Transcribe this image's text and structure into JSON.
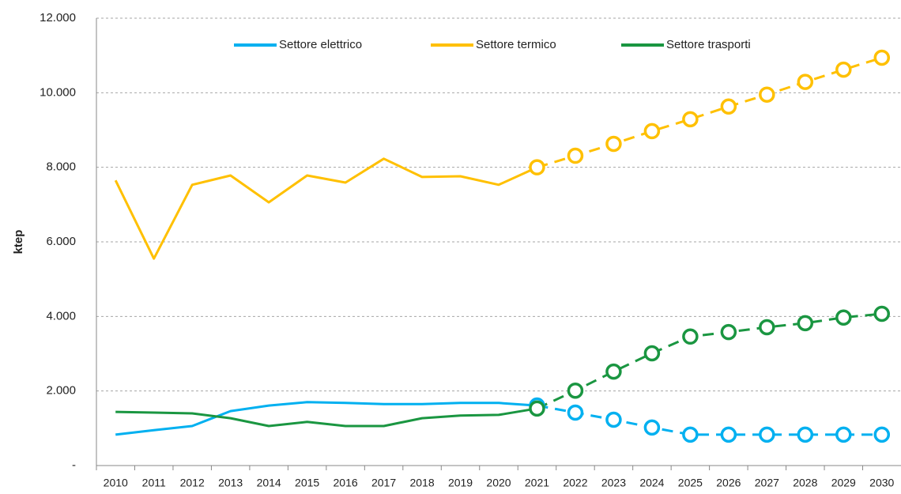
{
  "chart_data": {
    "type": "line",
    "y_label": "ktep",
    "categories": [
      "2010",
      "2011",
      "2012",
      "2013",
      "2014",
      "2015",
      "2016",
      "2017",
      "2018",
      "2019",
      "2020",
      "2021",
      "2022",
      "2023",
      "2024",
      "2025",
      "2026",
      "2027",
      "2028",
      "2029",
      "2030"
    ],
    "dashed_from": "2021",
    "series": [
      {
        "name": "Settore elettrico",
        "color": "#00b0f0",
        "values": [
          830,
          950,
          1060,
          1460,
          1610,
          1700,
          1680,
          1650,
          1650,
          1680,
          1680,
          1610,
          1420,
          1230,
          1020,
          830,
          830,
          830,
          830,
          830,
          830
        ]
      },
      {
        "name": "Settore termico",
        "color": "#ffc000",
        "values": [
          7650,
          5550,
          7530,
          7780,
          7060,
          7780,
          7590,
          8230,
          7740,
          7760,
          7530,
          8000,
          8310,
          8630,
          8970,
          9290,
          9630,
          9950,
          10290,
          10620,
          10940
        ]
      },
      {
        "name": "Settore trasporti",
        "color": "#1a9641",
        "values": [
          1440,
          1420,
          1400,
          1270,
          1060,
          1170,
          1060,
          1060,
          1270,
          1340,
          1360,
          1530,
          2010,
          2520,
          3010,
          3460,
          3580,
          3710,
          3820,
          3970,
          4070
        ]
      }
    ],
    "ylim": [
      0,
      12000
    ],
    "yticks": [
      {
        "value": 0,
        "label": "-"
      },
      {
        "value": 2000,
        "label": "2.000"
      },
      {
        "value": 4000,
        "label": "4.000"
      },
      {
        "value": 6000,
        "label": "6.000"
      },
      {
        "value": 8000,
        "label": "8.000"
      },
      {
        "value": 10000,
        "label": "10.000"
      },
      {
        "value": 12000,
        "label": "12.000"
      }
    ],
    "grid": true,
    "legend": "top"
  }
}
